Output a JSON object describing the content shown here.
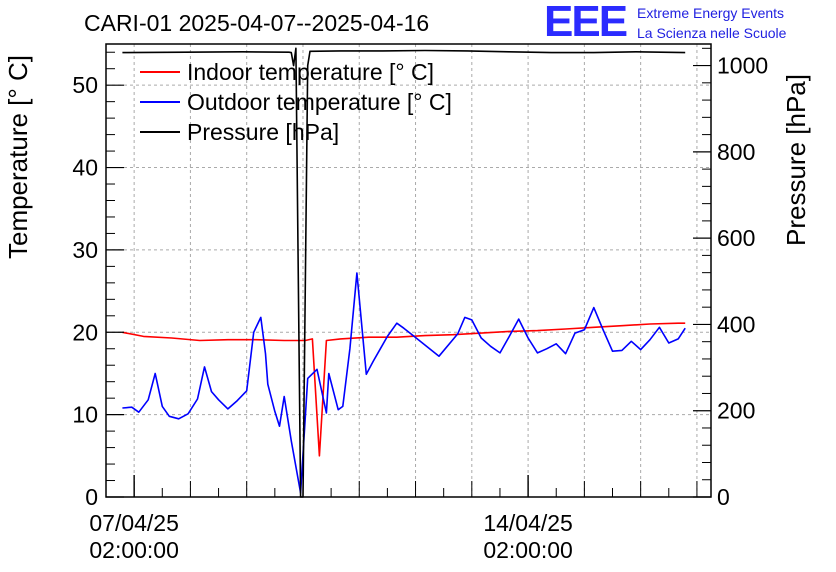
{
  "header": {
    "title": "CARI-01 2025-04-07--2025-04-16",
    "logo_text": "EEE",
    "logo_line1": "Extreme Energy Events",
    "logo_line2": "La Scienza nelle Scuole"
  },
  "chart_data": {
    "type": "line",
    "ylabel": "Temperature [° C]",
    "y2label": "Pressure [hPa]",
    "ylim": [
      0,
      55
    ],
    "y2lim": [
      0,
      1050
    ],
    "yticks": [
      "0",
      "10",
      "20",
      "30",
      "40",
      "50"
    ],
    "y2ticks": [
      "0",
      "200",
      "400",
      "600",
      "800",
      "1000"
    ],
    "xlim": [
      "2025-04-06T14:00",
      "2025-04-17T08:00"
    ],
    "xticks": [
      {
        "date": "07/04/25",
        "time": "02:00:00",
        "x": "2025-04-07T02:00"
      },
      {
        "date": "14/04/25",
        "time": "02:00:00",
        "x": "2025-04-14T02:00"
      }
    ],
    "grid": true,
    "legend_position": "top-left",
    "colors": {
      "indoor": "#ff0000",
      "outdoor": "#0000ff",
      "pressure": "#000000"
    },
    "series": [
      {
        "name": "Indoor temperature [° C]",
        "axis": "left",
        "x": [
          "2025-04-06T21:00",
          "2025-04-07T06:00",
          "2025-04-07T18:00",
          "2025-04-08T06:00",
          "2025-04-08T18:00",
          "2025-04-09T06:00",
          "2025-04-09T18:00",
          "2025-04-10T03:00",
          "2025-04-10T06:00",
          "2025-04-10T09:00",
          "2025-04-10T12:00",
          "2025-04-10T18:00",
          "2025-04-11T06:00",
          "2025-04-11T18:00",
          "2025-04-12T06:00",
          "2025-04-12T18:00",
          "2025-04-13T06:00",
          "2025-04-13T18:00",
          "2025-04-14T06:00",
          "2025-04-14T18:00",
          "2025-04-15T06:00",
          "2025-04-15T18:00",
          "2025-04-16T06:00",
          "2025-04-16T18:00",
          "2025-04-16T21:00"
        ],
        "y": [
          20.0,
          19.5,
          19.3,
          19.0,
          19.1,
          19.1,
          19.0,
          19.0,
          19.2,
          5.0,
          19.0,
          19.2,
          19.4,
          19.4,
          19.6,
          19.7,
          19.9,
          20.1,
          20.2,
          20.4,
          20.6,
          20.8,
          21.0,
          21.1,
          21.1
        ]
      },
      {
        "name": "Outdoor temperature [° C]",
        "axis": "left",
        "x": [
          "2025-04-06T21:00",
          "2025-04-07T01:00",
          "2025-04-07T04:00",
          "2025-04-07T08:00",
          "2025-04-07T11:00",
          "2025-04-07T14:00",
          "2025-04-07T17:00",
          "2025-04-07T21:00",
          "2025-04-08T01:00",
          "2025-04-08T05:00",
          "2025-04-08T08:00",
          "2025-04-08T11:00",
          "2025-04-08T14:00",
          "2025-04-08T18:00",
          "2025-04-08T22:00",
          "2025-04-09T02:00",
          "2025-04-09T05:00",
          "2025-04-09T08:00",
          "2025-04-09T10:00",
          "2025-04-09T11:00",
          "2025-04-09T14:00",
          "2025-04-09T16:00",
          "2025-04-09T18:00",
          "2025-04-09T21:00",
          "2025-04-10T01:00",
          "2025-04-10T04:00",
          "2025-04-10T08:00",
          "2025-04-10T12:00",
          "2025-04-10T13:00",
          "2025-04-10T17:00",
          "2025-04-10T19:00",
          "2025-04-10T22:00",
          "2025-04-11T01:00",
          "2025-04-11T05:00",
          "2025-04-11T08:00",
          "2025-04-11T11:00",
          "2025-04-11T14:00",
          "2025-04-11T18:00",
          "2025-04-11T21:00",
          "2025-04-12T01:00",
          "2025-04-12T12:00",
          "2025-04-12T20:00",
          "2025-04-12T23:00",
          "2025-04-13T02:00",
          "2025-04-13T06:00",
          "2025-04-13T10:00",
          "2025-04-13T14:00",
          "2025-04-13T18:00",
          "2025-04-13T22:00",
          "2025-04-14T02:00",
          "2025-04-14T06:00",
          "2025-04-14T10:00",
          "2025-04-14T14:00",
          "2025-04-14T18:00",
          "2025-04-14T22:00",
          "2025-04-15T02:00",
          "2025-04-15T06:00",
          "2025-04-15T10:00",
          "2025-04-15T14:00",
          "2025-04-15T18:00",
          "2025-04-15T22:00",
          "2025-04-16T02:00",
          "2025-04-16T06:00",
          "2025-04-16T10:00",
          "2025-04-16T14:00",
          "2025-04-16T18:00",
          "2025-04-16T21:00"
        ],
        "y": [
          10.8,
          10.9,
          10.3,
          11.8,
          15.0,
          11.0,
          9.8,
          9.5,
          10.1,
          11.9,
          15.8,
          12.8,
          11.8,
          10.7,
          11.7,
          12.9,
          20.0,
          21.8,
          17.4,
          13.7,
          10.4,
          8.6,
          12.2,
          6.8,
          0.5,
          14.4,
          15.5,
          10.2,
          15.0,
          10.6,
          11.0,
          18.0,
          27.2,
          14.9,
          16.5,
          18.0,
          19.5,
          21.1,
          20.5,
          19.6,
          17.1,
          19.8,
          21.8,
          21.5,
          19.3,
          18.3,
          17.5,
          19.5,
          21.6,
          19.3,
          17.5,
          18.0,
          18.6,
          17.4,
          19.9,
          20.3,
          23.0,
          20.3,
          17.7,
          17.8,
          18.9,
          17.9,
          19.1,
          20.6,
          18.7,
          19.2,
          20.5
        ]
      },
      {
        "name": "Pressure [hPa]",
        "axis": "right",
        "x": [
          "2025-04-06T21:00",
          "2025-04-08T00:00",
          "2025-04-09T00:00",
          "2025-04-09T20:00",
          "2025-04-09T21:00",
          "2025-04-09T22:00",
          "2025-04-09T23:00",
          "2025-04-10T01:00",
          "2025-04-10T02:00",
          "2025-04-10T04:00",
          "2025-04-10T05:00",
          "2025-04-10T18:00",
          "2025-04-11T12:00",
          "2025-04-12T06:00",
          "2025-04-13T00:00",
          "2025-04-13T18:00",
          "2025-04-14T12:00",
          "2025-04-15T06:00",
          "2025-04-16T00:00",
          "2025-04-16T21:00"
        ],
        "y": [
          1030,
          1031,
          1032,
          1031,
          1030,
          1000,
          1040,
          0,
          0,
          1000,
          1033,
          1034,
          1034,
          1035,
          1034,
          1032,
          1030,
          1030,
          1032,
          1030
        ]
      }
    ]
  }
}
